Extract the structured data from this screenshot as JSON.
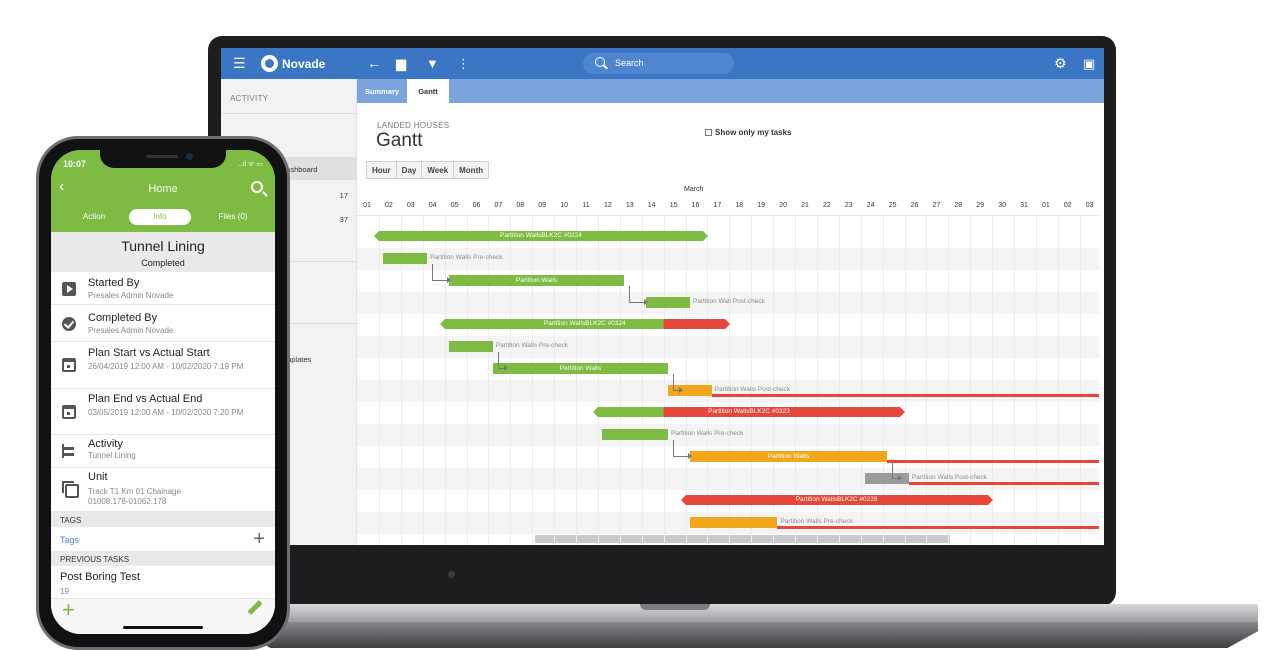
{
  "laptop": {
    "appbar": {
      "brand": "Novade",
      "search_placeholder": "Search",
      "icons": [
        "menu-icon",
        "back-arrow-icon",
        "briefcase-icon",
        "filter-icon",
        "more-vert-icon",
        "gear-icon",
        "account-box-icon"
      ]
    },
    "sidenav": {
      "section": "ACTIVITY",
      "items": [
        {
          "label": "Global Dashboard",
          "count": ""
        },
        {
          "label": "es",
          "count": "17"
        },
        {
          "label": "",
          "count": "37"
        },
        {
          "label": "mplates",
          "count": ""
        }
      ]
    },
    "tabs": [
      {
        "label": "Summary",
        "active": false
      },
      {
        "label": "Gantt",
        "active": true
      }
    ],
    "project_name": "LANDED HOUSES",
    "page_title": "Gantt",
    "show_only_mine": "Show only my tasks",
    "scales": [
      "Hour",
      "Day",
      "Week",
      "Month"
    ],
    "gantt": {
      "month": "March",
      "days": [
        "01",
        "02",
        "03",
        "04",
        "05",
        "06",
        "07",
        "08",
        "09",
        "10",
        "11",
        "12",
        "13",
        "14",
        "15",
        "16",
        "17",
        "18",
        "19",
        "20",
        "21",
        "22",
        "23",
        "24",
        "25",
        "26",
        "27",
        "28",
        "29",
        "30",
        "31",
        "01",
        "02",
        "03"
      ],
      "colors": {
        "done": "#7dbb42",
        "late": "#e6473a",
        "progress": "#f0a81a",
        "idle": "#9b9b9b"
      },
      "tasks": [
        {
          "label": "Partition WallsBLK2C #0224",
          "type": "summary",
          "start": 1,
          "end": 15.8,
          "late_from": null,
          "color": "done"
        },
        {
          "label": "Partition Walls Pre-check",
          "type": "task",
          "start": 1.2,
          "end": 3.2,
          "label_outside": true,
          "color": "done"
        },
        {
          "label": "Partition Walls",
          "type": "task",
          "start": 4.2,
          "end": 12.2,
          "color": "done"
        },
        {
          "label": "Partition Wall Post-check",
          "type": "task",
          "start": 13.2,
          "end": 15.2,
          "label_outside": true,
          "color": "done"
        },
        {
          "label": "Partition WallsBLK2C #0324",
          "type": "summary",
          "start": 4,
          "end": 14,
          "late_from": 14,
          "late_to": 16.8,
          "color": "done"
        },
        {
          "label": "Partition Walls Pre-check",
          "type": "task",
          "start": 4.2,
          "end": 6.2,
          "label_outside": true,
          "color": "done"
        },
        {
          "label": "Partition Walls",
          "type": "task",
          "start": 6.2,
          "end": 14.2,
          "color": "done"
        },
        {
          "label": "Partition Walls Post-check",
          "type": "task",
          "start": 14.2,
          "end": 16.2,
          "label_outside": true,
          "color": "progress",
          "overdue_to": 34
        },
        {
          "label": "Partition WallsBLK2C #0323",
          "type": "summary",
          "start": 11,
          "end": 14,
          "late_from": 14,
          "late_to": 24.8,
          "color": "done"
        },
        {
          "label": "Partition Walls Pre-check",
          "type": "task",
          "start": 11.2,
          "end": 14.2,
          "label_outside": true,
          "color": "done"
        },
        {
          "label": "Partition Walls",
          "type": "task",
          "start": 15.2,
          "end": 24.2,
          "color": "progress",
          "overdue_to": 34
        },
        {
          "label": "Partition Walls Post-check",
          "type": "task",
          "start": 23.2,
          "end": 25.2,
          "label_outside": true,
          "color": "idle",
          "overdue_to": 34
        },
        {
          "label": "Partition WallsBLK2C #0228",
          "type": "summary",
          "start": 15,
          "end": 15,
          "late_from": 15,
          "late_to": 28.8,
          "color": "late"
        },
        {
          "label": "Partition Walls Pre-check",
          "type": "task",
          "start": 15.2,
          "end": 19.2,
          "label_outside": true,
          "color": "progress",
          "overdue_to": 34
        }
      ]
    }
  },
  "phone": {
    "time": "10:07",
    "status": "..ıl ᯤ ▭",
    "header_title": "Home",
    "tabs": [
      {
        "label": "Action",
        "active": false
      },
      {
        "label": "Info",
        "active": true
      },
      {
        "label": "Files (0)",
        "active": false
      }
    ],
    "task_name": "Tunnel Lining",
    "task_state": "Completed",
    "rows": [
      {
        "icon": "play-icon",
        "title": "Started By",
        "sub": "Presales Admin Novade"
      },
      {
        "icon": "check-circle-icon",
        "title": "Completed By",
        "sub": "Presales Admin Novade"
      },
      {
        "icon": "calendar-icon",
        "title": "Plan Start vs Actual Start",
        "sub": "26/04/2019 12:00 AM - 10/02/2020 7:19 PM"
      },
      {
        "icon": "calendar-icon",
        "title": "Plan End vs Actual End",
        "sub": "03/05/2019 12:00 AM - 10/02/2020 7:20 PM"
      },
      {
        "icon": "tree-icon",
        "title": "Activity",
        "sub": "Tunnel Lining"
      },
      {
        "icon": "copy-icon",
        "title": "Unit",
        "sub": "Track T1 Km 01 Chainage 01008.178-01062.178"
      }
    ],
    "tags_section": "TAGS",
    "tags_link": "Tags",
    "prev_section": "PREVIOUS TASKS",
    "prev_title": "Post Boring Test",
    "prev_sub": "19"
  }
}
